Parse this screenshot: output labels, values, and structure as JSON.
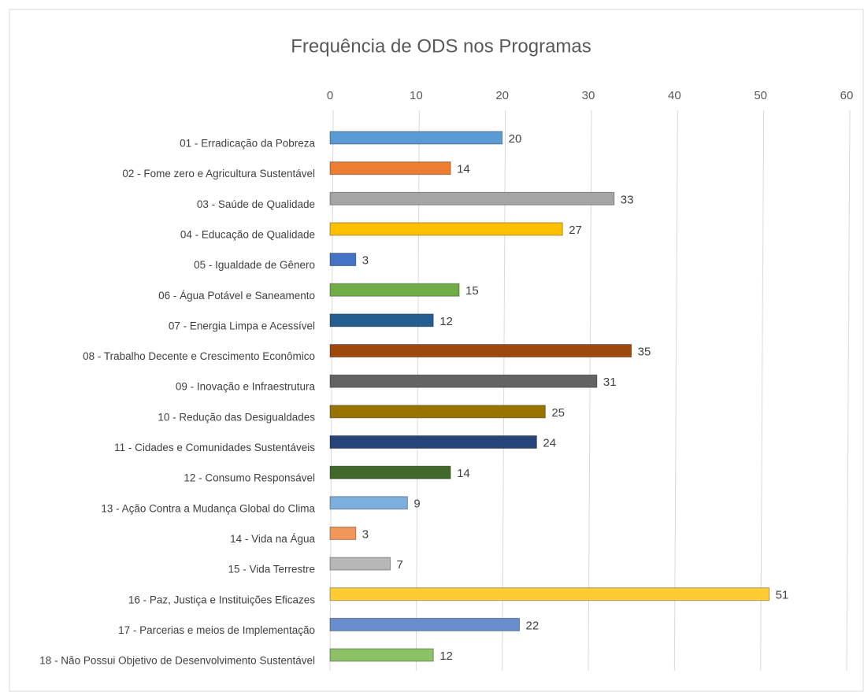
{
  "chart_data": {
    "type": "bar",
    "orientation": "horizontal",
    "title": "Frequência de ODS nos Programas",
    "categories": [
      "01 - Erradicação da Pobreza",
      "02 - Fome zero e Agricultura Sustentável",
      "03 - Saúde de Qualidade",
      "04 - Educação de Qualidade",
      "05 - Igualdade de Gênero",
      "06 - Água Potável e Saneamento",
      "07 - Energia Limpa e Acessível",
      "08 - Trabalho Decente e Crescimento Econômico",
      "09 - Inovação e Infraestrutura",
      "10 - Redução das Desigualdades",
      "11 - Cidades e Comunidades Sustentáveis",
      "12 - Consumo Responsável",
      "13 - Ação Contra a Mudança Global do Clima",
      "14 - Vida na Água",
      "15 - Vida Terrestre",
      "16 - Paz, Justiça e Instituições Eficazes",
      "17 - Parcerias e meios de Implementação",
      "18 - Não Possui Objetivo de Desenvolvimento Sustentável"
    ],
    "values": [
      20,
      14,
      33,
      27,
      3,
      15,
      12,
      35,
      31,
      25,
      24,
      14,
      9,
      3,
      7,
      51,
      22,
      12
    ],
    "colors": [
      "#5b9bd5",
      "#ed7d31",
      "#a5a5a5",
      "#ffc000",
      "#4472c4",
      "#70ad47",
      "#255e91",
      "#9e480e",
      "#636363",
      "#997300",
      "#264478",
      "#43682b",
      "#7cafdd",
      "#f1975a",
      "#b7b7b7",
      "#ffcd33",
      "#698ed0",
      "#8cc168"
    ],
    "xlim": [
      0,
      60
    ],
    "xticks": [
      0,
      10,
      20,
      30,
      40,
      50,
      60
    ],
    "grid": true
  }
}
